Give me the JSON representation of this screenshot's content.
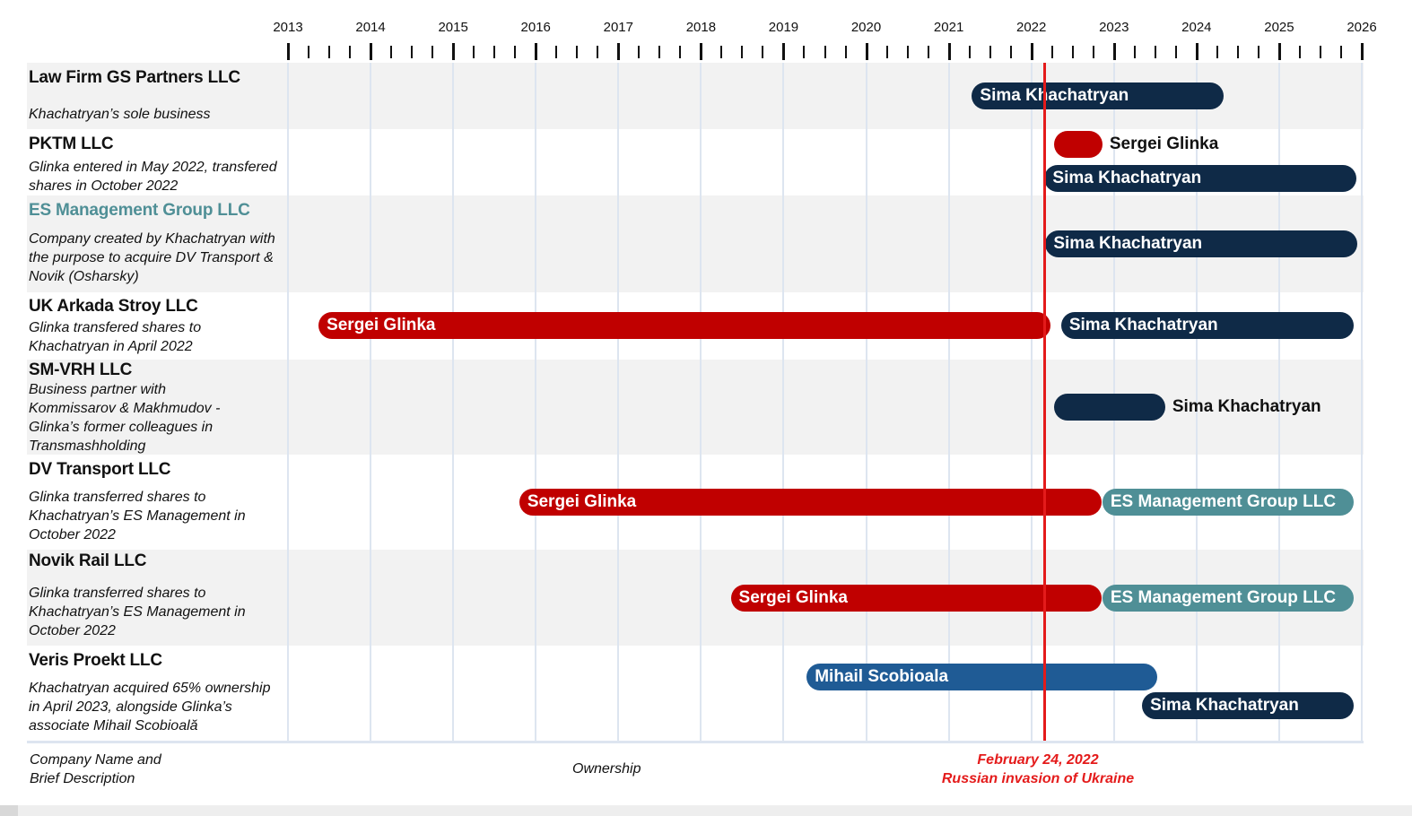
{
  "colors": {
    "glinka": "#c00000",
    "khachatryan": "#0f2a47",
    "es_management": "#4f8f96",
    "scobioala": "#1f5b95",
    "event_line": "#e41b1b"
  },
  "chart_data": {
    "type": "timeline",
    "xlim": [
      2013,
      2026
    ],
    "ticks_per_year": 4,
    "x_tick_labels": [
      "2013",
      "2014",
      "2015",
      "2016",
      "2017",
      "2018",
      "2019",
      "2020",
      "2021",
      "2022",
      "2023",
      "2024",
      "2025",
      "2026"
    ],
    "rows": [
      {
        "name": "Law Firm GS Partners LLC",
        "desc": "Khachatryan’s sole business",
        "bars": [
          {
            "owner": "Sima Khachatryan",
            "color_key": "khachatryan",
            "start": 2021.28,
            "end": 2024.33
          }
        ]
      },
      {
        "name": "PKTM LLC",
        "desc": "Glinka entered in May 2022, transfered shares in October 2022",
        "bars": [
          {
            "owner": "Sergei Glinka",
            "color_key": "glinka",
            "start": 2022.27,
            "end": 2022.86,
            "label_outside": true
          },
          {
            "owner": "Sima Khachatryan",
            "color_key": "khachatryan",
            "start": 2022.16,
            "end": 2025.93
          }
        ]
      },
      {
        "name": "ES Management Group LLC",
        "name_style": "teal",
        "desc": "Company created by Khachatryan with the purpose to acquire DV Transport & Novik (Osharsky)",
        "bars": [
          {
            "owner": "Sima Khachatryan",
            "color_key": "khachatryan",
            "start": 2022.17,
            "end": 2025.95
          }
        ]
      },
      {
        "name": "UK Arkada Stroy LLC",
        "desc": "Glinka transfered shares to Khachatryan in April 2022",
        "bars": [
          {
            "owner": "Sergei Glinka",
            "color_key": "glinka",
            "start": 2013.37,
            "end": 2022.23
          },
          {
            "owner": "Sima Khachatryan",
            "color_key": "khachatryan",
            "start": 2022.36,
            "end": 2025.9
          }
        ]
      },
      {
        "name": "SM-VRH LLC",
        "desc": "Business partner with Kommissarov & Makhmudov - Glinka’s former colleagues in Transmashholding",
        "bars": [
          {
            "owner": "Sima Khachatryan",
            "color_key": "khachatryan",
            "start": 2022.27,
            "end": 2023.62,
            "label_outside": true
          }
        ]
      },
      {
        "name": "DV Transport LLC",
        "desc": "Glinka transferred shares to Khachatryan’s ES Management in October 2022",
        "bars": [
          {
            "owner": "Sergei Glinka",
            "color_key": "glinka",
            "start": 2015.8,
            "end": 2022.85
          },
          {
            "owner": "ES Management Group LLC",
            "color_key": "es_management",
            "start": 2022.86,
            "end": 2025.9
          }
        ]
      },
      {
        "name": "Novik Rail LLC",
        "desc": "Glinka transferred shares to Khachatryan’s ES Management in October 2022",
        "bars": [
          {
            "owner": "Sergei Glinka",
            "color_key": "glinka",
            "start": 2018.36,
            "end": 2022.85
          },
          {
            "owner": "ES Management Group LLC",
            "color_key": "es_management",
            "start": 2022.86,
            "end": 2025.9
          }
        ]
      },
      {
        "name": "Veris Proekt LLC",
        "desc": "Khachatryan acquired 65% ownership in April 2023, alongside Glinka’s associate Mihail Scobioală",
        "bars": [
          {
            "owner": "Mihail Scobioala",
            "color_key": "scobioala",
            "start": 2019.28,
            "end": 2023.52
          },
          {
            "owner": "Sima Khachatryan",
            "color_key": "khachatryan",
            "start": 2023.34,
            "end": 2025.9
          }
        ]
      }
    ],
    "event": {
      "date": 2022.15,
      "label_line1": "February 24, 2022",
      "label_line2": "Russian invasion of Ukraine"
    }
  },
  "footer": {
    "company_col_line1": "Company Name and",
    "company_col_line2": "Brief Description",
    "ownership_label": "Ownership"
  }
}
